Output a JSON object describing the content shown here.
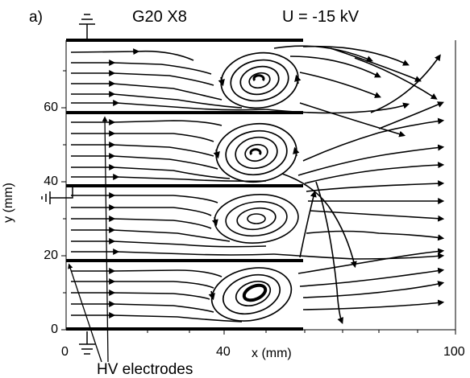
{
  "figure": {
    "panel_label": "a)",
    "title": "G20 X8",
    "voltage_label": "U = -15 kV",
    "y_axis_label": "y (mm)",
    "x_axis_label": "x (mm)",
    "y_ticks": [
      "0",
      "20",
      "40",
      "60"
    ],
    "x_ticks": [
      "0",
      "40",
      "100"
    ],
    "hv_label": "HV  electrodes",
    "ground_symbol": "ground-icon",
    "stroke_color": "#000000"
  }
}
